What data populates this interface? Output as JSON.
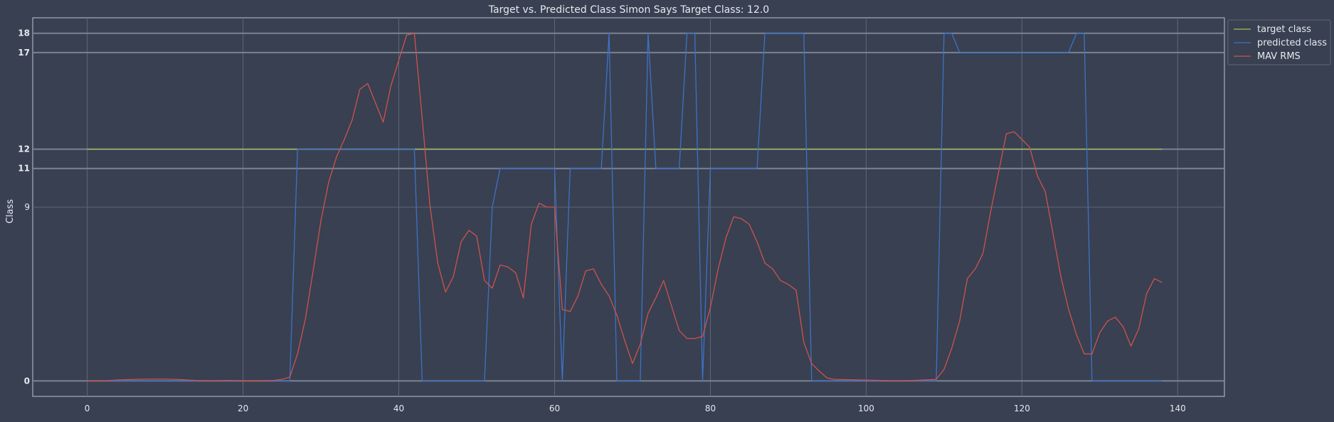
{
  "chart_data": {
    "type": "line",
    "title": "Target vs. Predicted Class Simon Says Target Class: 12.0",
    "xlabel": "",
    "ylabel": "Class",
    "xlim": [
      -7,
      146
    ],
    "ylim": [
      -0.8,
      18.8
    ],
    "x_ticks": [
      0,
      20,
      40,
      60,
      80,
      100,
      120,
      140
    ],
    "y_ticks": [
      0,
      9,
      11,
      12,
      17,
      18
    ],
    "y_ticks_bold": [
      0,
      11,
      12,
      17,
      18
    ],
    "grid": true,
    "legend_position": "upper right, outside plot",
    "colors": {
      "background": "#384052",
      "target": "#a3be57",
      "predicted": "#3f72c4",
      "mav": "#d0524a",
      "grid": "#5e6778",
      "emph_grid": "#7a8393"
    },
    "series": [
      {
        "name": "target class",
        "color": "#a3be57",
        "x": [
          0,
          138
        ],
        "y": [
          12,
          12
        ]
      },
      {
        "name": "predicted class",
        "color": "#3f72c4",
        "x": [
          0,
          26,
          27,
          42,
          43,
          51,
          52,
          53,
          60,
          61,
          62,
          66,
          67,
          68,
          71,
          72,
          73,
          76,
          77,
          78,
          79,
          80,
          86,
          87,
          92,
          93,
          109,
          110,
          111,
          112,
          126,
          127,
          128,
          129,
          138
        ],
        "y": [
          0,
          0,
          12,
          12,
          0,
          0,
          9,
          11,
          11,
          0,
          11,
          11,
          18,
          0,
          0,
          18,
          11,
          11,
          18,
          18,
          0,
          11,
          11,
          18,
          18,
          0,
          0,
          18,
          18,
          17,
          17,
          18,
          18,
          0,
          0
        ]
      },
      {
        "name": "MAV RMS",
        "color": "#d0524a",
        "x": [
          0,
          2,
          4,
          6,
          8,
          10,
          12,
          14,
          16,
          18,
          20,
          22,
          24,
          25,
          26,
          27,
          28,
          29,
          30,
          31,
          32,
          33,
          34,
          35,
          36,
          37,
          38,
          39,
          40,
          41,
          42,
          43,
          44,
          45,
          46,
          47,
          48,
          49,
          50,
          51,
          52,
          53,
          54,
          55,
          56,
          57,
          58,
          59,
          60,
          61,
          62,
          63,
          64,
          65,
          66,
          67,
          68,
          69,
          70,
          71,
          72,
          73,
          74,
          75,
          76,
          77,
          78,
          79,
          80,
          81,
          82,
          83,
          84,
          85,
          86,
          87,
          88,
          89,
          90,
          91,
          92,
          93,
          94,
          95,
          96,
          98,
          100,
          102,
          104,
          106,
          108,
          109,
          110,
          111,
          112,
          113,
          114,
          115,
          116,
          117,
          118,
          119,
          120,
          121,
          122,
          123,
          124,
          125,
          126,
          127,
          128,
          129,
          130,
          131,
          132,
          133,
          134,
          135,
          136,
          137,
          138
        ],
        "y": [
          0,
          0,
          0.05,
          0.08,
          0.1,
          0.1,
          0.07,
          0.02,
          0,
          0.03,
          0,
          0,
          0.03,
          0.08,
          0.2,
          1.4,
          3.2,
          5.7,
          8.3,
          10.3,
          11.6,
          12.5,
          13.5,
          15.1,
          15.4,
          14.4,
          13.4,
          15.3,
          16.6,
          17.9,
          18,
          13.6,
          9.1,
          6.1,
          4.6,
          5.4,
          7.2,
          7.8,
          7.5,
          5.2,
          4.8,
          6,
          5.9,
          5.6,
          4.3,
          8.1,
          9.2,
          9,
          9,
          3.7,
          3.6,
          4.4,
          5.7,
          5.8,
          5,
          4.4,
          3.4,
          2.1,
          0.9,
          1.9,
          3.5,
          4.3,
          5.2,
          3.9,
          2.6,
          2.2,
          2.2,
          2.3,
          3.8,
          5.8,
          7.4,
          8.5,
          8.4,
          8.1,
          7.2,
          6.1,
          5.8,
          5.2,
          5,
          4.7,
          2,
          0.9,
          0.5,
          0.15,
          0.08,
          0.06,
          0.04,
          0.02,
          0,
          0.02,
          0.06,
          0.08,
          0.6,
          1.7,
          3.1,
          5.3,
          5.8,
          6.6,
          8.8,
          10.8,
          12.8,
          12.9,
          12.5,
          12.1,
          10.6,
          9.8,
          7.6,
          5.4,
          3.7,
          2.4,
          1.4,
          1.4,
          2.5,
          3.1,
          3.3,
          2.8,
          1.8,
          2.7,
          4.5,
          5.3,
          5.1
        ]
      }
    ]
  }
}
